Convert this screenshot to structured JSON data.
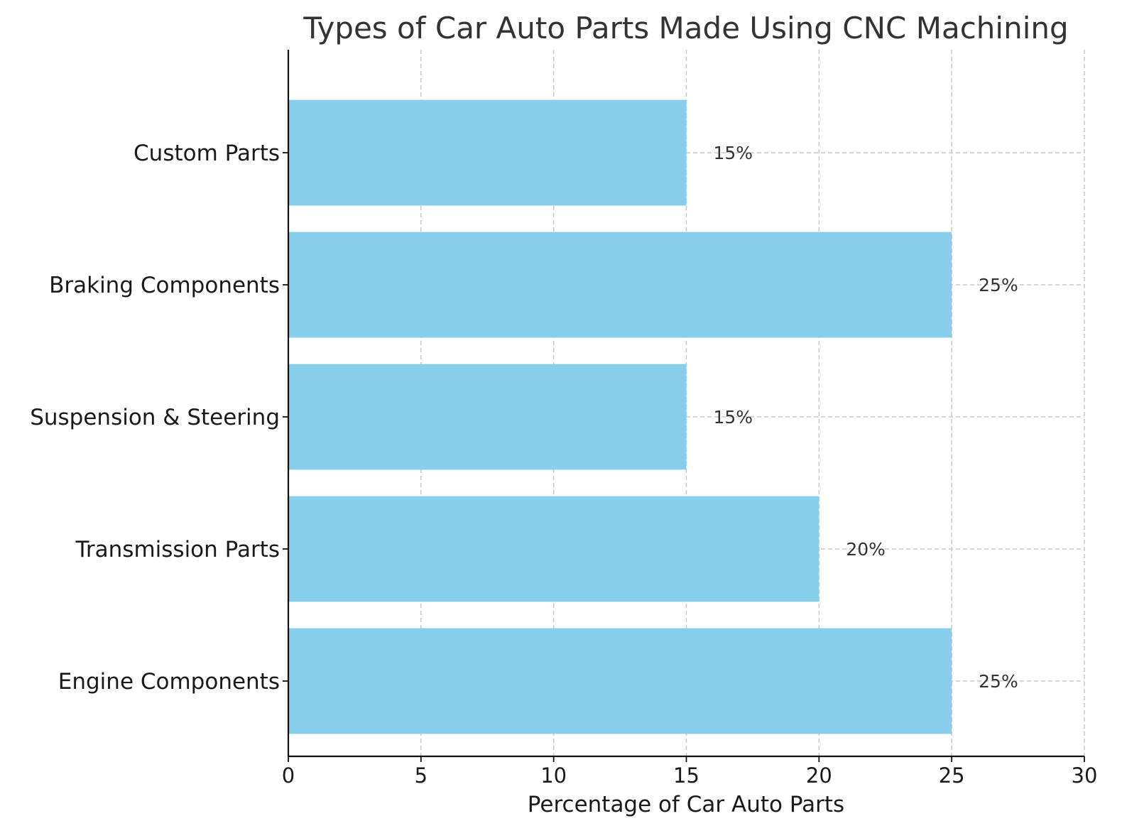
{
  "chart_data": {
    "type": "bar",
    "orientation": "horizontal",
    "title": "Types of Car Auto Parts Made Using CNC Machining",
    "xlabel": "Percentage of Car Auto Parts",
    "ylabel": "",
    "categories": [
      "Engine Components",
      "Transmission Parts",
      "Suspension & Steering",
      "Braking Components",
      "Custom Parts"
    ],
    "values": [
      25,
      20,
      15,
      25,
      15
    ],
    "data_labels": [
      "25%",
      "20%",
      "15%",
      "25%",
      "15%"
    ],
    "xlim": [
      0,
      30
    ],
    "xticks": [
      0,
      5,
      10,
      15,
      20,
      25,
      30
    ],
    "grid": true,
    "bar_color": "#87ceeb"
  }
}
